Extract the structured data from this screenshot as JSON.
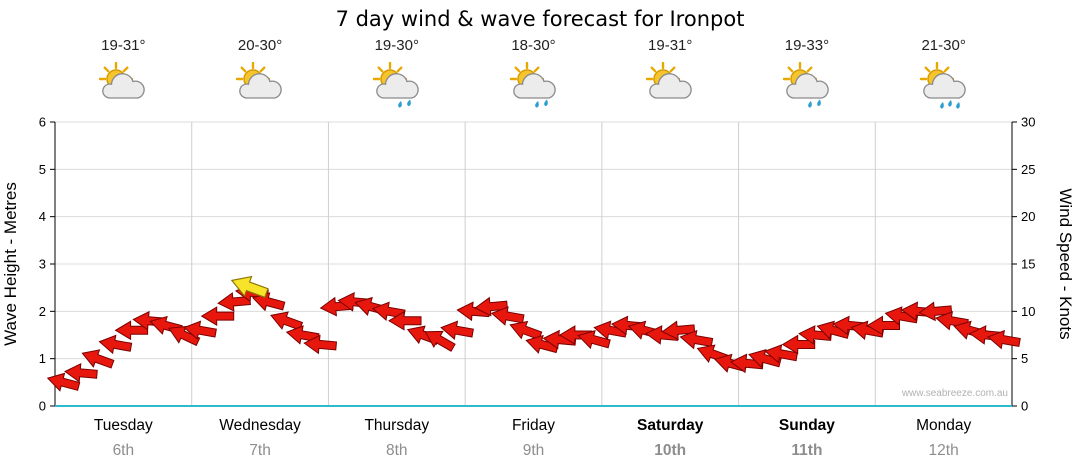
{
  "title": "7 day wind & wave forecast for Ironpot",
  "watermark": "www.seabreeze.com.au",
  "days": [
    {
      "name": "Tuesday",
      "date": "6th",
      "temp": "19-31°",
      "icon": "sun-cloud",
      "bold": false
    },
    {
      "name": "Wednesday",
      "date": "7th",
      "temp": "20-30°",
      "icon": "sun-cloud",
      "bold": false
    },
    {
      "name": "Thursday",
      "date": "8th",
      "temp": "19-30°",
      "icon": "sun-cloud-rain",
      "bold": false
    },
    {
      "name": "Friday",
      "date": "9th",
      "temp": "18-30°",
      "icon": "sun-cloud-rain",
      "bold": false
    },
    {
      "name": "Saturday",
      "date": "10th",
      "temp": "19-31°",
      "icon": "sun-cloud",
      "bold": true
    },
    {
      "name": "Sunday",
      "date": "11th",
      "temp": "19-33°",
      "icon": "sun-cloud-rain",
      "bold": true
    },
    {
      "name": "Monday",
      "date": "12th",
      "temp": "21-30°",
      "icon": "sun-cloud-rain-heavy",
      "bold": false
    }
  ],
  "chart_data": {
    "type": "wind-arrow-series",
    "title": "7 day wind & wave forecast for Ironpot",
    "x_categories": [
      "Tuesday",
      "Wednesday",
      "Thursday",
      "Friday",
      "Saturday",
      "Sunday",
      "Monday"
    ],
    "left_axis": {
      "label": "Wave Height - Metres",
      "min": 0,
      "max": 6,
      "ticks": [
        0,
        1,
        2,
        3,
        4,
        5,
        6
      ]
    },
    "right_axis": {
      "label": "Wind Speed - Knots",
      "min": 0,
      "max": 30,
      "ticks": [
        0,
        5,
        10,
        15,
        20,
        25,
        30
      ]
    },
    "grid": true,
    "arrow_color": "#e8170d",
    "arrow_outline": "#7a0000",
    "bottom_axis_color": "#2fb9cc",
    "storm_marker": {
      "t": 1.42,
      "knots": 12.6,
      "dir": 200,
      "color": "#f7e32a"
    },
    "points": [
      {
        "t": 0.06,
        "k": 2.5,
        "d": 195
      },
      {
        "t": 0.19,
        "k": 3.5,
        "d": 185
      },
      {
        "t": 0.31,
        "k": 5,
        "d": 200
      },
      {
        "t": 0.44,
        "k": 6.5,
        "d": 190
      },
      {
        "t": 0.56,
        "k": 8,
        "d": 180
      },
      {
        "t": 0.69,
        "k": 9,
        "d": 185
      },
      {
        "t": 0.81,
        "k": 8.5,
        "d": 195
      },
      {
        "t": 0.94,
        "k": 7.5,
        "d": 205
      },
      {
        "t": 1.06,
        "k": 8,
        "d": 190
      },
      {
        "t": 1.19,
        "k": 9.5,
        "d": 180
      },
      {
        "t": 1.31,
        "k": 11,
        "d": 175
      },
      {
        "t": 1.44,
        "k": 12,
        "d": 185
      },
      {
        "t": 1.56,
        "k": 11,
        "d": 195
      },
      {
        "t": 1.69,
        "k": 9,
        "d": 200
      },
      {
        "t": 1.81,
        "k": 7.5,
        "d": 190
      },
      {
        "t": 1.94,
        "k": 6.5,
        "d": 185
      },
      {
        "t": 2.06,
        "k": 10.5,
        "d": 175
      },
      {
        "t": 2.19,
        "k": 11,
        "d": 185
      },
      {
        "t": 2.31,
        "k": 10.5,
        "d": 195
      },
      {
        "t": 2.44,
        "k": 10,
        "d": 190
      },
      {
        "t": 2.56,
        "k": 9,
        "d": 180
      },
      {
        "t": 2.69,
        "k": 7.5,
        "d": 200
      },
      {
        "t": 2.81,
        "k": 7,
        "d": 210
      },
      {
        "t": 2.94,
        "k": 8,
        "d": 190
      },
      {
        "t": 3.06,
        "k": 10,
        "d": 185
      },
      {
        "t": 3.19,
        "k": 10.5,
        "d": 175
      },
      {
        "t": 3.31,
        "k": 9.5,
        "d": 190
      },
      {
        "t": 3.44,
        "k": 8,
        "d": 200
      },
      {
        "t": 3.56,
        "k": 6.5,
        "d": 195
      },
      {
        "t": 3.69,
        "k": 7,
        "d": 185
      },
      {
        "t": 3.81,
        "k": 7.5,
        "d": 180
      },
      {
        "t": 3.94,
        "k": 7,
        "d": 195
      },
      {
        "t": 4.06,
        "k": 8,
        "d": 190
      },
      {
        "t": 4.19,
        "k": 8.5,
        "d": 185
      },
      {
        "t": 4.31,
        "k": 8,
        "d": 195
      },
      {
        "t": 4.44,
        "k": 7.5,
        "d": 185
      },
      {
        "t": 4.56,
        "k": 8,
        "d": 175
      },
      {
        "t": 4.69,
        "k": 7,
        "d": 190
      },
      {
        "t": 4.81,
        "k": 5.5,
        "d": 200
      },
      {
        "t": 4.94,
        "k": 4.5,
        "d": 195
      },
      {
        "t": 5.06,
        "k": 4.5,
        "d": 185
      },
      {
        "t": 5.19,
        "k": 5,
        "d": 195
      },
      {
        "t": 5.31,
        "k": 5.5,
        "d": 190
      },
      {
        "t": 5.44,
        "k": 6.5,
        "d": 180
      },
      {
        "t": 5.56,
        "k": 7.5,
        "d": 185
      },
      {
        "t": 5.69,
        "k": 8,
        "d": 195
      },
      {
        "t": 5.81,
        "k": 8.5,
        "d": 185
      },
      {
        "t": 5.94,
        "k": 8,
        "d": 190
      },
      {
        "t": 6.06,
        "k": 8.5,
        "d": 180
      },
      {
        "t": 6.19,
        "k": 9.5,
        "d": 190
      },
      {
        "t": 6.31,
        "k": 10,
        "d": 185
      },
      {
        "t": 6.44,
        "k": 10,
        "d": 175
      },
      {
        "t": 6.56,
        "k": 9,
        "d": 190
      },
      {
        "t": 6.69,
        "k": 8,
        "d": 195
      },
      {
        "t": 6.81,
        "k": 7.5,
        "d": 185
      },
      {
        "t": 6.94,
        "k": 7,
        "d": 190
      }
    ]
  }
}
